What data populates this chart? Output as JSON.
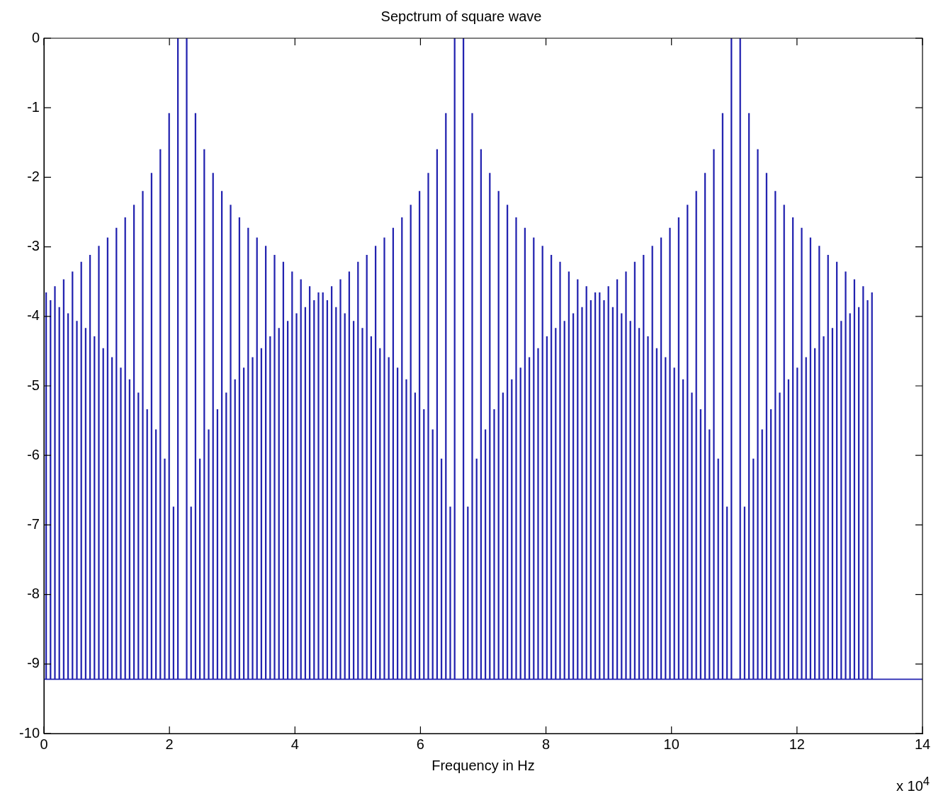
{
  "chart_data": {
    "type": "bar",
    "title": "Sepctrum of square wave",
    "xlabel": "Frequency in Hz",
    "annotations": [
      "x 10$^{4}$"
    ],
    "x": [
      0.035,
      0.105,
      0.175,
      0.245,
      0.315,
      0.385,
      0.455,
      0.525,
      0.595,
      0.665,
      0.735,
      0.805,
      0.875,
      0.945,
      1.015,
      1.085,
      1.155,
      1.225,
      1.295,
      1.365,
      1.435,
      1.505,
      1.575,
      1.645,
      1.715,
      1.785,
      1.855,
      1.925,
      1.995,
      2.065,
      2.135,
      2.205,
      2.275,
      2.345,
      2.415,
      2.485,
      2.555,
      2.625,
      2.695,
      2.765,
      2.835,
      2.905,
      2.975,
      3.045,
      3.115,
      3.185,
      3.255,
      3.325,
      3.395,
      3.465,
      3.535,
      3.605,
      3.675,
      3.745,
      3.815,
      3.885,
      3.955,
      4.025,
      4.095,
      4.165,
      4.235,
      4.305,
      4.375,
      4.445,
      4.515,
      4.585,
      4.655,
      4.725,
      4.795,
      4.865,
      4.935,
      5.005,
      5.075,
      5.145,
      5.215,
      5.285,
      5.355,
      5.425,
      5.495,
      5.565,
      5.635,
      5.705,
      5.775,
      5.845,
      5.915,
      5.985,
      6.055,
      6.125,
      6.195,
      6.265,
      6.335,
      6.405,
      6.475,
      6.545,
      6.615,
      6.685,
      6.755,
      6.825,
      6.895,
      6.965,
      7.035,
      7.105,
      7.175,
      7.245,
      7.315,
      7.385,
      7.455,
      7.525,
      7.595,
      7.665,
      7.735,
      7.805,
      7.875,
      7.945,
      8.015,
      8.085,
      8.155,
      8.225,
      8.295,
      8.365,
      8.435,
      8.505,
      8.575,
      8.645,
      8.715,
      8.785,
      8.855,
      8.925,
      8.995,
      9.065,
      9.135,
      9.205,
      9.275,
      9.345,
      9.415,
      9.485,
      9.555,
      9.625,
      9.695,
      9.765,
      9.835,
      9.905,
      9.975,
      10.045,
      10.115,
      10.185,
      10.255,
      10.325,
      10.395,
      10.465,
      10.535,
      10.605,
      10.675,
      10.745,
      10.815,
      10.885,
      10.955,
      11.025,
      11.095,
      11.165,
      11.235,
      11.305,
      11.375,
      11.445,
      11.515,
      11.585,
      11.655,
      11.725,
      11.795,
      11.865,
      11.935,
      12.005,
      12.075,
      12.145,
      12.215,
      12.285,
      12.355,
      12.425,
      12.495,
      12.565,
      12.635,
      12.705,
      12.775,
      12.845,
      12.915,
      12.985,
      13.055,
      13.125,
      13.195
    ],
    "values": [
      5.56,
      5.45,
      5.65,
      5.35,
      5.75,
      5.26,
      5.86,
      5.15,
      6.0,
      5.05,
      6.1,
      4.93,
      6.23,
      4.76,
      6.35,
      4.63,
      6.49,
      4.48,
      6.64,
      4.31,
      6.82,
      4.12,
      7.02,
      3.88,
      7.28,
      3.59,
      7.62,
      3.17,
      8.14,
      2.48,
      9.22,
      null,
      9.22,
      2.48,
      8.14,
      3.17,
      7.62,
      3.59,
      7.28,
      3.88,
      7.02,
      4.12,
      6.82,
      4.31,
      6.64,
      4.48,
      6.49,
      4.63,
      6.35,
      4.76,
      6.23,
      4.93,
      6.1,
      5.05,
      6.0,
      5.15,
      5.86,
      5.26,
      5.75,
      5.35,
      5.65,
      5.45,
      5.56,
      5.56,
      5.45,
      5.65,
      5.35,
      5.75,
      5.26,
      5.86,
      5.15,
      6.0,
      5.05,
      6.1,
      4.93,
      6.23,
      4.76,
      6.35,
      4.63,
      6.49,
      4.48,
      6.64,
      4.31,
      6.82,
      4.12,
      7.02,
      3.88,
      7.28,
      3.59,
      7.62,
      3.17,
      8.14,
      2.48,
      9.22,
      null,
      9.22,
      2.48,
      8.14,
      3.17,
      7.62,
      3.59,
      7.28,
      3.88,
      7.02,
      4.12,
      6.82,
      4.31,
      6.64,
      4.48,
      6.49,
      4.63,
      6.35,
      4.76,
      6.23,
      4.93,
      6.1,
      5.05,
      6.0,
      5.15,
      5.86,
      5.26,
      5.75,
      5.35,
      5.65,
      5.45,
      5.56,
      5.56,
      5.45,
      5.65,
      5.35,
      5.75,
      5.26,
      5.86,
      5.15,
      6.0,
      5.05,
      6.1,
      4.93,
      6.23,
      4.76,
      6.35,
      4.63,
      6.49,
      4.48,
      6.64,
      4.31,
      6.82,
      4.12,
      7.02,
      3.88,
      7.28,
      3.59,
      7.62,
      3.17,
      8.14,
      2.48,
      9.22,
      null,
      9.22,
      2.48,
      8.14,
      3.17,
      7.62,
      3.59,
      7.28,
      3.88,
      7.02,
      4.12,
      6.82,
      4.31,
      6.64,
      4.48,
      6.49,
      4.63,
      6.35,
      4.76,
      6.23,
      4.93,
      6.1,
      5.05,
      6.0,
      5.15,
      5.86,
      5.26,
      5.75,
      5.35,
      5.65,
      5.45,
      5.56
    ],
    "base": [
      -9.22,
      -9.22,
      -9.22,
      -9.22,
      -9.22,
      -9.22,
      -9.22,
      -9.22,
      -9.22,
      -9.22,
      -9.22,
      -9.22,
      -9.22,
      -9.22,
      -9.22,
      -9.22,
      -9.22,
      -9.22,
      -9.22,
      -9.22,
      -9.22,
      -9.22,
      -9.22,
      -9.22,
      -9.22,
      -9.22,
      -9.22,
      -9.22,
      -9.22,
      -9.22,
      -9.22,
      null,
      -9.22,
      -9.22,
      -9.22,
      -9.22,
      -9.22,
      -9.22,
      -9.22,
      -9.22,
      -9.22,
      -9.22,
      -9.22,
      -9.22,
      -9.22,
      -9.22,
      -9.22,
      -9.22,
      -9.22,
      -9.22,
      -9.22,
      -9.22,
      -9.22,
      -9.22,
      -9.22,
      -9.22,
      -9.22,
      -9.22,
      -9.22,
      -9.22,
      -9.22,
      -9.22,
      -9.22,
      -9.22,
      -9.22,
      -9.22,
      -9.22,
      -9.22,
      -9.22,
      -9.22,
      -9.22,
      -9.22,
      -9.22,
      -9.22,
      -9.22,
      -9.22,
      -9.22,
      -9.22,
      -9.22,
      -9.22,
      -9.22,
      -9.22,
      -9.22,
      -9.22,
      -9.22,
      -9.22,
      -9.22,
      -9.22,
      -9.22,
      -9.22,
      -9.22,
      -9.22,
      -9.22,
      -9.22,
      null,
      -9.22,
      -9.22,
      -9.22,
      -9.22,
      -9.22,
      -9.22,
      -9.22,
      -9.22,
      -9.22,
      -9.22,
      -9.22,
      -9.22,
      -9.22,
      -9.22,
      -9.22,
      -9.22,
      -9.22,
      -9.22,
      -9.22,
      -9.22,
      -9.22,
      -9.22,
      -9.22,
      -9.22,
      -9.22,
      -9.22,
      -9.22,
      -9.22,
      -9.22,
      -9.22,
      -9.22,
      -9.22,
      -9.22,
      -9.22,
      -9.22,
      -9.22,
      -9.22,
      -9.22,
      -9.22,
      -9.22,
      -9.22,
      -9.22,
      -9.22,
      -9.22,
      -9.22,
      -9.22,
      -9.22,
      -9.22,
      -9.22,
      -9.22,
      -9.22,
      -9.22,
      -9.22,
      -9.22,
      -9.22,
      -9.22,
      -9.22,
      -9.22,
      -9.22,
      -9.22,
      -9.22,
      -9.22,
      null,
      -9.22,
      -9.22,
      -9.22,
      -9.22,
      -9.22,
      -9.22,
      -9.22,
      -9.22,
      -9.22,
      -9.22,
      -9.22,
      -9.22,
      -9.22,
      -9.22,
      -9.22,
      -9.22,
      -9.22,
      -9.22,
      -9.22,
      -9.22,
      -9.22,
      -9.22,
      -9.22,
      -9.22,
      -9.22,
      -9.22,
      -9.22,
      -9.22,
      -9.22,
      -9.22,
      -9.22
    ],
    "color": "#2323b0",
    "ref_lines": [
      {
        "axis": "y",
        "value": -9.22,
        "color": "#2323b0"
      }
    ],
    "xlim": [
      0,
      14
    ],
    "xticks": [
      0,
      2,
      4,
      6,
      8,
      10,
      12,
      14
    ],
    "ylim": [
      -10,
      0
    ],
    "yticks": [
      0,
      -1,
      -2,
      -3,
      -4,
      -5,
      -6,
      -7,
      -8,
      -9,
      -10
    ],
    "grid": false,
    "legend": false
  }
}
